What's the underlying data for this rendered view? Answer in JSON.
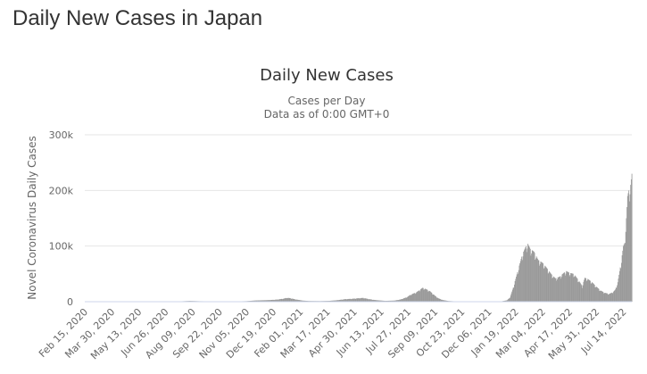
{
  "page": {
    "heading": "Daily New Cases in Japan"
  },
  "colors": {
    "bar": "#999999",
    "grid": "#e6e6e6",
    "text": "#333333",
    "subtext": "#666666",
    "axis_line": "#ccd6eb"
  },
  "chart_data": {
    "type": "bar",
    "title": "Daily New Cases",
    "subtitle": [
      "Cases per Day",
      "Data as of 0:00 GMT+0"
    ],
    "ylabel": "Novel Coronavirus Daily Cases",
    "xlabel": "",
    "ylim": [
      0,
      300000
    ],
    "y_ticks": [
      0,
      100000,
      200000,
      300000
    ],
    "y_tick_labels": [
      "0",
      "100k",
      "200k",
      "300k"
    ],
    "x_range": [
      "2020-02-15",
      "2022-07-28"
    ],
    "x_tick_labels": [
      "Feb 15, 2020",
      "Mar 30, 2020",
      "May 13, 2020",
      "Jun 26, 2020",
      "Aug 09, 2020",
      "Sep 22, 2020",
      "Nov 05, 2020",
      "Dec 19, 2020",
      "Feb 01, 2021",
      "Mar 17, 2021",
      "Apr 30, 2021",
      "Jun 13, 2021",
      "Jul 27, 2021",
      "Sep 09, 2021",
      "Oct 23, 2021",
      "Dec 06, 2021",
      "Jan 19, 2022",
      "Mar 04, 2022",
      "Apr 17, 2022",
      "May 31, 2022",
      "Jul 14, 2022"
    ],
    "grid": true,
    "legend": "none",
    "series": [
      {
        "values_note": "Approximate daily new cases (weekly points read off the chart)",
        "points": [
          [
            "2020-02-15",
            0
          ],
          [
            "2020-03-30",
            100
          ],
          [
            "2020-04-10",
            600
          ],
          [
            "2020-04-20",
            400
          ],
          [
            "2020-05-13",
            50
          ],
          [
            "2020-06-26",
            100
          ],
          [
            "2020-07-20",
            700
          ],
          [
            "2020-08-05",
            1400
          ],
          [
            "2020-08-20",
            900
          ],
          [
            "2020-09-22",
            500
          ],
          [
            "2020-10-20",
            600
          ],
          [
            "2020-11-05",
            1000
          ],
          [
            "2020-11-20",
            2200
          ],
          [
            "2020-12-10",
            2800
          ],
          [
            "2020-12-25",
            3800
          ],
          [
            "2021-01-05",
            5500
          ],
          [
            "2021-01-10",
            7000
          ],
          [
            "2021-01-15",
            6500
          ],
          [
            "2021-01-25",
            4000
          ],
          [
            "2021-02-05",
            2000
          ],
          [
            "2021-02-15",
            1300
          ],
          [
            "2021-03-05",
            1100
          ],
          [
            "2021-03-20",
            1500
          ],
          [
            "2021-04-01",
            2500
          ],
          [
            "2021-04-15",
            4500
          ],
          [
            "2021-04-30",
            5500
          ],
          [
            "2021-05-10",
            6500
          ],
          [
            "2021-05-15",
            6800
          ],
          [
            "2021-05-25",
            4500
          ],
          [
            "2021-06-05",
            2800
          ],
          [
            "2021-06-20",
            1500
          ],
          [
            "2021-07-05",
            2000
          ],
          [
            "2021-07-15",
            4000
          ],
          [
            "2021-07-25",
            8000
          ],
          [
            "2021-08-01",
            13000
          ],
          [
            "2021-08-10",
            17000
          ],
          [
            "2021-08-15",
            21000
          ],
          [
            "2021-08-20",
            25000
          ],
          [
            "2021-08-25",
            23000
          ],
          [
            "2021-09-01",
            19000
          ],
          [
            "2021-09-09",
            11000
          ],
          [
            "2021-09-15",
            6000
          ],
          [
            "2021-09-22",
            3000
          ],
          [
            "2021-10-01",
            1300
          ],
          [
            "2021-10-15",
            500
          ],
          [
            "2021-11-01",
            200
          ],
          [
            "2021-12-01",
            150
          ],
          [
            "2021-12-25",
            300
          ],
          [
            "2022-01-05",
            2500
          ],
          [
            "2022-01-10",
            8000
          ],
          [
            "2022-01-15",
            25000
          ],
          [
            "2022-01-20",
            45000
          ],
          [
            "2022-01-25",
            65000
          ],
          [
            "2022-01-30",
            85000
          ],
          [
            "2022-02-05",
            100000
          ],
          [
            "2022-02-08",
            104000
          ],
          [
            "2022-02-12",
            95000
          ],
          [
            "2022-02-18",
            90000
          ],
          [
            "2022-02-25",
            75000
          ],
          [
            "2022-03-04",
            70000
          ],
          [
            "2022-03-10",
            62000
          ],
          [
            "2022-03-18",
            50000
          ],
          [
            "2022-03-25",
            42000
          ],
          [
            "2022-04-01",
            45000
          ],
          [
            "2022-04-08",
            52000
          ],
          [
            "2022-04-12",
            55000
          ],
          [
            "2022-04-17",
            52000
          ],
          [
            "2022-04-24",
            50000
          ],
          [
            "2022-05-01",
            40000
          ],
          [
            "2022-05-08",
            28000
          ],
          [
            "2022-05-12",
            43000
          ],
          [
            "2022-05-17",
            41000
          ],
          [
            "2022-05-24",
            35000
          ],
          [
            "2022-05-31",
            27000
          ],
          [
            "2022-06-07",
            20000
          ],
          [
            "2022-06-14",
            16000
          ],
          [
            "2022-06-21",
            14000
          ],
          [
            "2022-06-28",
            18000
          ],
          [
            "2022-07-01",
            22000
          ],
          [
            "2022-07-05",
            35000
          ],
          [
            "2022-07-08",
            55000
          ],
          [
            "2022-07-11",
            75000
          ],
          [
            "2022-07-14",
            100000
          ],
          [
            "2022-07-16",
            105000
          ],
          [
            "2022-07-19",
            150000
          ],
          [
            "2022-07-21",
            190000
          ],
          [
            "2022-07-24",
            205000
          ],
          [
            "2022-07-26",
            210000
          ],
          [
            "2022-07-28",
            230000
          ]
        ]
      }
    ]
  }
}
